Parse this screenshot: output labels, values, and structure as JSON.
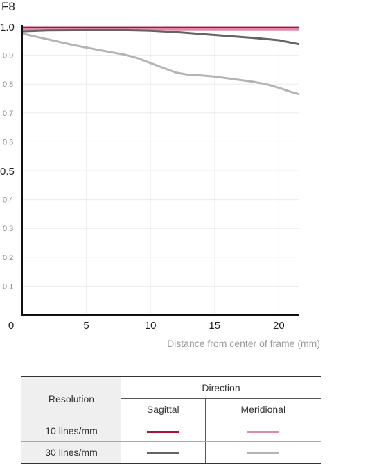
{
  "chart_data": {
    "type": "line",
    "title": "F8",
    "xlabel": "Distance from center of frame (mm)",
    "ylabel": "",
    "xlim": [
      0,
      21.6
    ],
    "ylim": [
      0,
      1.0
    ],
    "x_ticks": [
      {
        "value": 0,
        "label": "0"
      },
      {
        "value": 5,
        "label": "5"
      },
      {
        "value": 10,
        "label": "10"
      },
      {
        "value": 15,
        "label": "15"
      },
      {
        "value": 20,
        "label": "20"
      }
    ],
    "y_ticks": [
      {
        "value": 0.1,
        "label": "0.1",
        "major": false
      },
      {
        "value": 0.2,
        "label": "0.2",
        "major": false
      },
      {
        "value": 0.3,
        "label": "0.3",
        "major": false
      },
      {
        "value": 0.4,
        "label": "0.4",
        "major": false
      },
      {
        "value": 0.5,
        "label": "0.5",
        "major": true
      },
      {
        "value": 0.6,
        "label": "0.6",
        "major": false
      },
      {
        "value": 0.7,
        "label": "0.7",
        "major": false
      },
      {
        "value": 0.8,
        "label": "0.8",
        "major": false
      },
      {
        "value": 0.9,
        "label": "0.9",
        "major": false
      },
      {
        "value": 1.0,
        "label": "1.0",
        "major": true
      }
    ],
    "grid": true,
    "series": [
      {
        "id": "s10",
        "color": "#b0103a",
        "width": 3,
        "x": [
          0,
          5,
          10,
          15,
          20,
          21.6
        ],
        "y": [
          0.995,
          0.995,
          0.995,
          0.995,
          0.995,
          0.995
        ]
      },
      {
        "id": "m10",
        "color": "#e08aa6",
        "width": 3,
        "x": [
          0,
          5,
          10,
          15,
          20,
          21.6
        ],
        "y": [
          0.99,
          0.99,
          0.99,
          0.99,
          0.99,
          0.99
        ]
      },
      {
        "id": "s30",
        "color": "#666266",
        "width": 3,
        "x": [
          0,
          2,
          5,
          8,
          10,
          12,
          15,
          18,
          20,
          21.6
        ],
        "y": [
          0.983,
          0.986,
          0.987,
          0.987,
          0.985,
          0.98,
          0.97,
          0.96,
          0.952,
          0.938
        ]
      },
      {
        "id": "m30",
        "color": "#b4b4b4",
        "width": 3,
        "x": [
          0,
          2,
          4,
          6,
          8,
          9,
          10,
          11,
          12,
          13,
          14,
          15,
          16,
          18,
          19,
          20,
          21,
          21.6
        ],
        "y": [
          0.975,
          0.955,
          0.935,
          0.918,
          0.902,
          0.89,
          0.873,
          0.856,
          0.84,
          0.832,
          0.83,
          0.826,
          0.82,
          0.808,
          0.8,
          0.787,
          0.772,
          0.765
        ]
      }
    ]
  },
  "legend": {
    "resolution_label": "Resolution",
    "direction_label": "Direction",
    "sagittal_label": "Sagittal",
    "meridional_label": "Meridional",
    "rows": [
      {
        "label": "10 lines/mm",
        "sagittal_color": "#b0103a",
        "meridional_color": "#e08aa6"
      },
      {
        "label": "30 lines/mm",
        "sagittal_color": "#666266",
        "meridional_color": "#b4b4b4"
      }
    ]
  }
}
